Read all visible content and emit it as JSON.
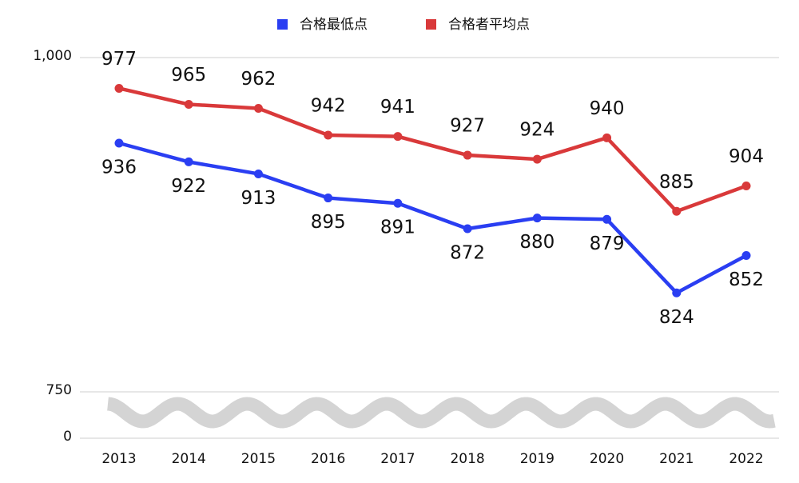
{
  "chart_data": {
    "type": "line",
    "x": [
      "2013",
      "2014",
      "2015",
      "2016",
      "2017",
      "2018",
      "2019",
      "2020",
      "2021",
      "2022"
    ],
    "series": [
      {
        "name": "合格最低点",
        "color": "#2a3ef2",
        "values": [
          936,
          922,
          913,
          895,
          891,
          872,
          880,
          879,
          824,
          852
        ],
        "label_position": "below"
      },
      {
        "name": "合格者平均点",
        "color": "#d9393a",
        "values": [
          977,
          965,
          962,
          942,
          941,
          927,
          924,
          940,
          885,
          904
        ],
        "label_position": "above"
      }
    ],
    "ylim": [
      0,
      1000
    ],
    "yticks": [
      0,
      750,
      {
        "value": 1000,
        "label": "1,000"
      }
    ],
    "axis_break": [
      0,
      750
    ],
    "grid": true,
    "legend": "top"
  }
}
